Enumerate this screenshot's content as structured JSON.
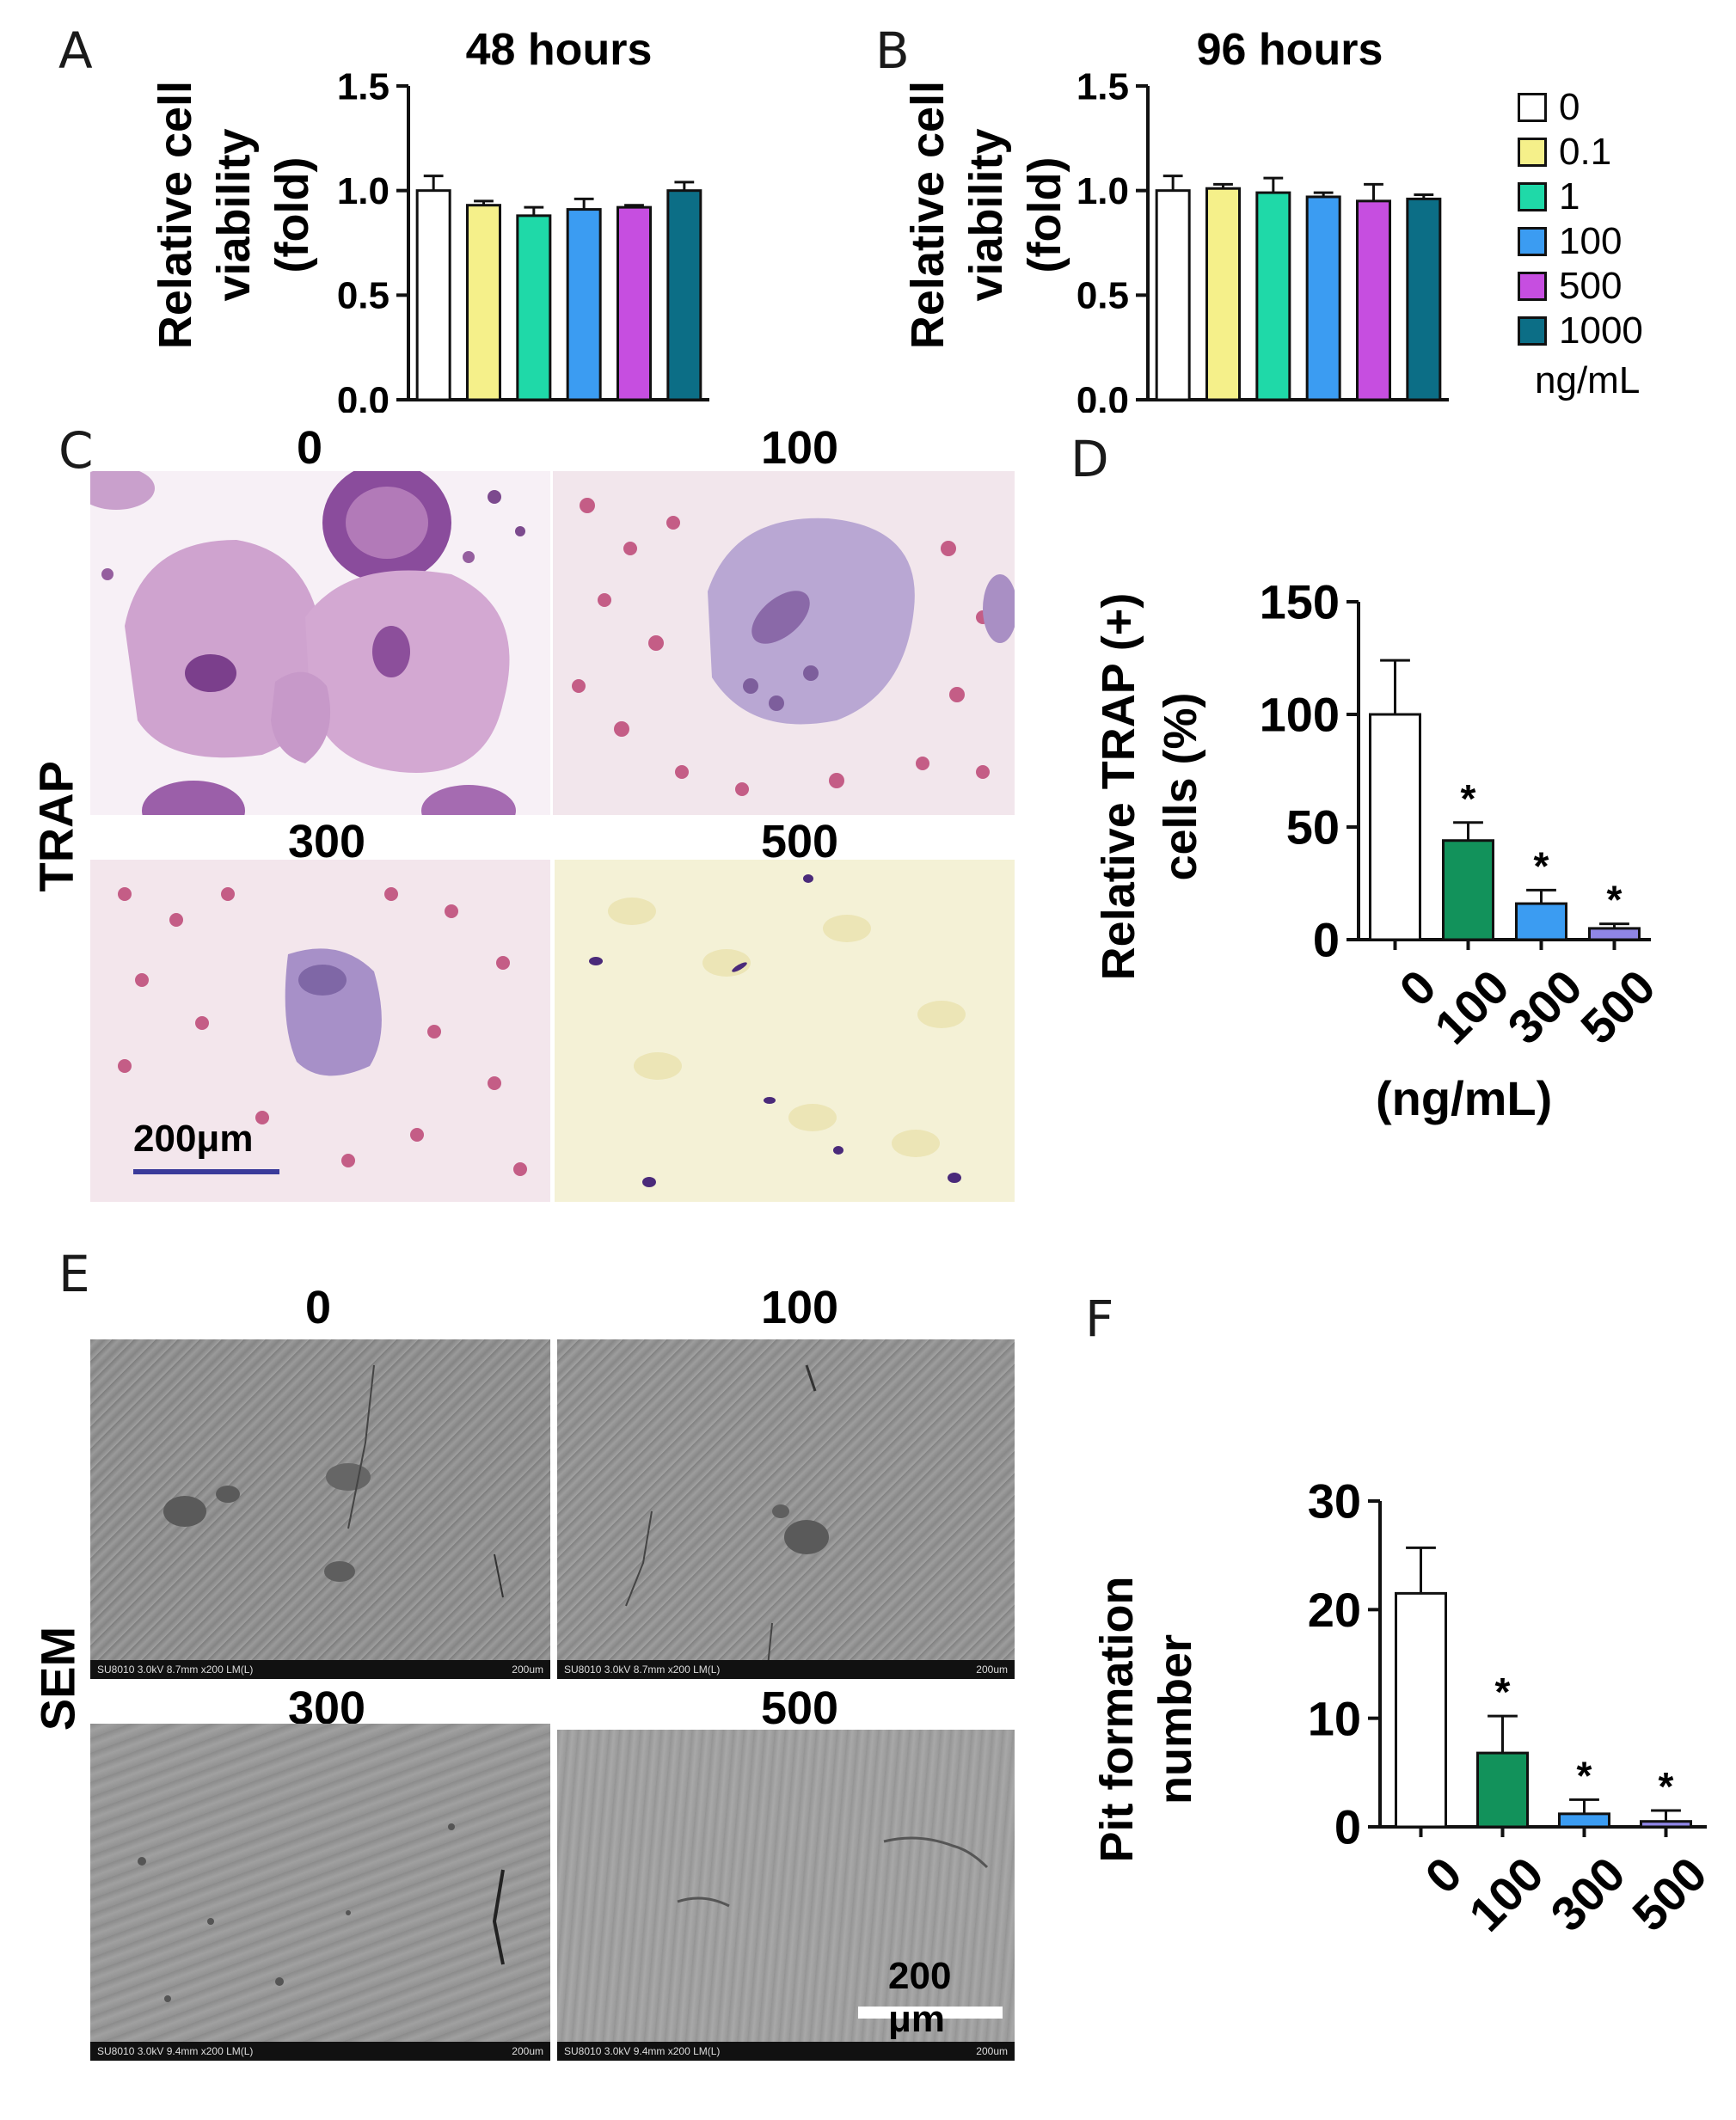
{
  "panels": {
    "A": "A",
    "B": "B",
    "C": "C",
    "D": "D",
    "E": "E",
    "F": "F"
  },
  "legend": {
    "items": [
      {
        "label": "0",
        "color": "#ffffff"
      },
      {
        "label": "0.1",
        "color": "#f5f08a"
      },
      {
        "label": "1",
        "color": "#1fd9a8"
      },
      {
        "label": "100",
        "color": "#3b9cf2"
      },
      {
        "label": "500",
        "color": "#c64ee0"
      },
      {
        "label": "1000",
        "color": "#0c6e86"
      }
    ],
    "unit": "ng/mL"
  },
  "trap": {
    "side_label": "TRAP",
    "labels": [
      "0",
      "100",
      "300",
      "500"
    ],
    "scalebar": "200μm"
  },
  "sem": {
    "side_label": "SEM",
    "labels": [
      "0",
      "100",
      "300",
      "500"
    ],
    "scalebar": "200 μm",
    "footer_left_top": "SU8010 3.0kV 8.7mm x200 LM(L)",
    "footer_left_bottom": "SU8010 3.0kV 9.4mm x200 LM(L)",
    "footer_right": "200um"
  },
  "chart_data": [
    {
      "id": "A",
      "type": "bar",
      "title": "48 hours",
      "ylabel": "Relative cell viability (fold)",
      "ylim": [
        0,
        1.5
      ],
      "yticks": [
        "0.0",
        "0.5",
        "1.0",
        "1.5"
      ],
      "categories": [
        "0",
        "0.1",
        "1",
        "100",
        "500",
        "1000"
      ],
      "values": [
        1.0,
        0.93,
        0.88,
        0.91,
        0.92,
        1.0
      ],
      "errors": [
        0.07,
        0.02,
        0.04,
        0.05,
        0.01,
        0.04
      ],
      "colors": [
        "#ffffff",
        "#f5f08a",
        "#1fd9a8",
        "#3b9cf2",
        "#c64ee0",
        "#0c6e86"
      ],
      "significance": [
        "",
        "",
        "",
        "",
        "",
        ""
      ]
    },
    {
      "id": "B",
      "type": "bar",
      "title": "96 hours",
      "ylabel": "Relative cell viability (fold)",
      "ylim": [
        0,
        1.5
      ],
      "yticks": [
        "0.0",
        "0.5",
        "1.0",
        "1.5"
      ],
      "categories": [
        "0",
        "0.1",
        "1",
        "100",
        "500",
        "1000"
      ],
      "values": [
        1.0,
        1.01,
        0.99,
        0.97,
        0.95,
        0.96
      ],
      "errors": [
        0.07,
        0.02,
        0.07,
        0.02,
        0.08,
        0.02
      ],
      "colors": [
        "#ffffff",
        "#f5f08a",
        "#1fd9a8",
        "#3b9cf2",
        "#c64ee0",
        "#0c6e86"
      ],
      "significance": [
        "",
        "",
        "",
        "",
        "",
        ""
      ]
    },
    {
      "id": "D",
      "type": "bar",
      "ylabel": "Relative TRAP (+) cells (%)",
      "xlabel": "(ng/mL)",
      "ylim": [
        0,
        150
      ],
      "yticks": [
        "0",
        "50",
        "100",
        "150"
      ],
      "categories": [
        "0",
        "100",
        "300",
        "500"
      ],
      "values": [
        100,
        44,
        16,
        5
      ],
      "errors": [
        24,
        8,
        6,
        2
      ],
      "colors": [
        "#ffffff",
        "#12925b",
        "#3b9cf2",
        "#8f86e6"
      ],
      "significance": [
        "",
        "*",
        "*",
        "*"
      ]
    },
    {
      "id": "F",
      "type": "bar",
      "ylabel": "Pit formation number",
      "ylim": [
        0,
        30
      ],
      "yticks": [
        "0",
        "10",
        "20",
        "30"
      ],
      "categories": [
        "0",
        "100",
        "300",
        "500"
      ],
      "values": [
        21.5,
        6.8,
        1.2,
        0.5
      ],
      "errors": [
        4.2,
        3.4,
        1.3,
        1.0
      ],
      "colors": [
        "#ffffff",
        "#12925b",
        "#3b9cf2",
        "#8f86e6"
      ],
      "significance": [
        "",
        "*",
        "*",
        "*"
      ]
    }
  ]
}
